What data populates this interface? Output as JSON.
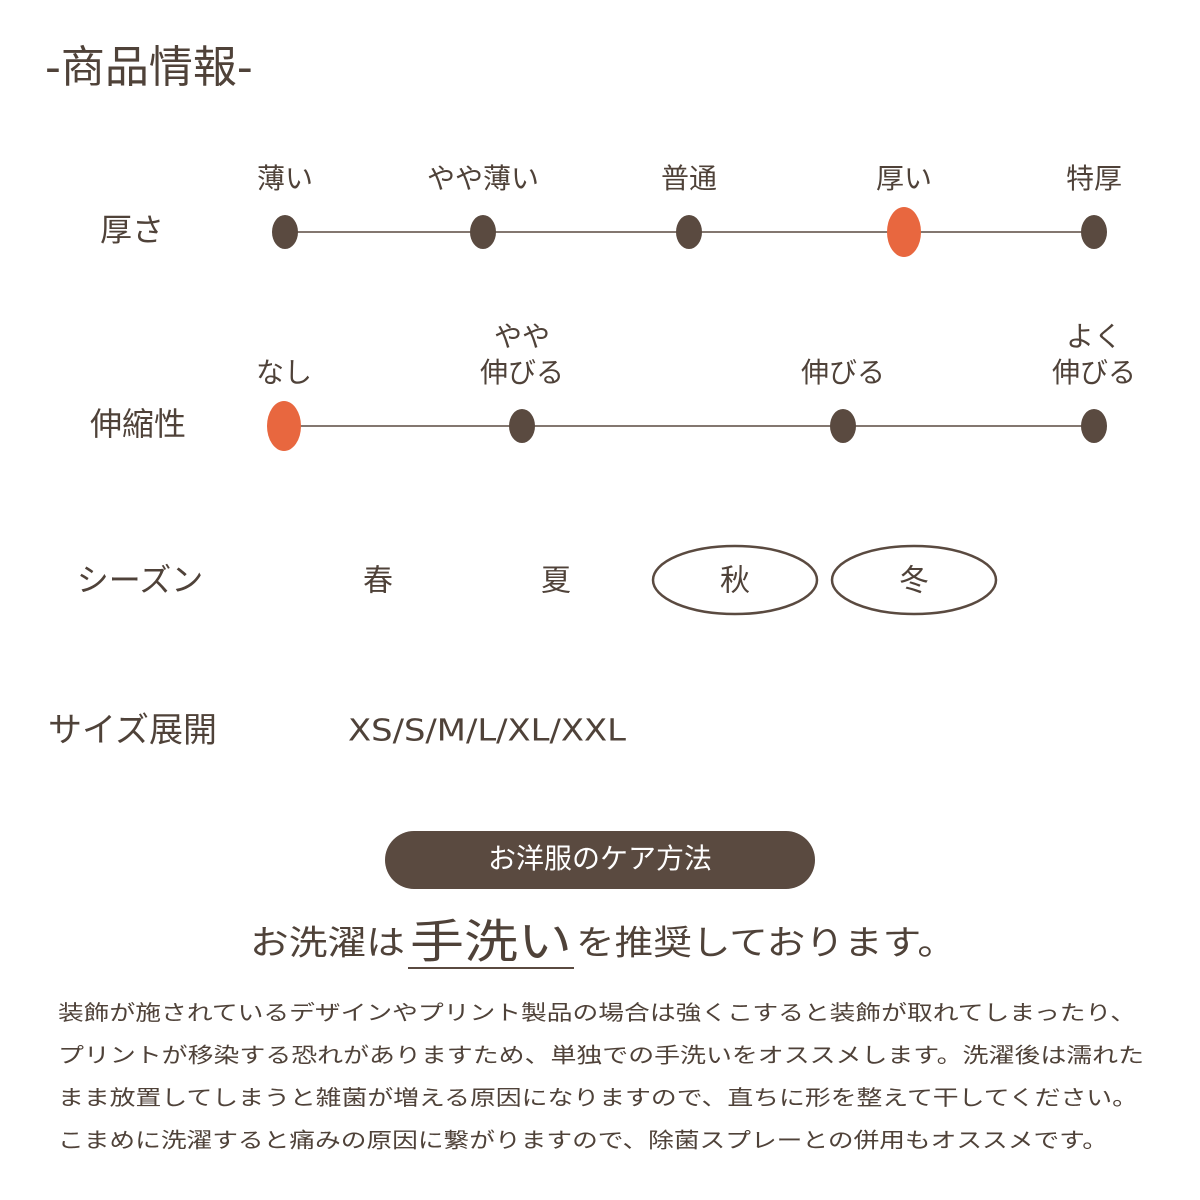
{
  "header": {
    "title": "-商品情報-"
  },
  "scales": [
    {
      "label": "厚さ",
      "options": [
        {
          "label": [
            "薄い"
          ],
          "selected": false
        },
        {
          "label": [
            "やや薄い"
          ],
          "selected": false
        },
        {
          "label": [
            "普通"
          ],
          "selected": false
        },
        {
          "label": [
            "厚い"
          ],
          "selected": true
        },
        {
          "label": [
            "特厚"
          ],
          "selected": false
        }
      ]
    },
    {
      "label": "伸縮性",
      "options": [
        {
          "label": [
            "なし"
          ],
          "selected": true
        },
        {
          "label": [
            "やや",
            "伸びる"
          ],
          "selected": false
        },
        {
          "label": [
            "伸びる"
          ],
          "selected": false
        },
        {
          "label": [
            "よく",
            "伸びる"
          ],
          "selected": false
        }
      ]
    }
  ],
  "season": {
    "label": "シーズン",
    "options": [
      {
        "label": "春",
        "selected": false
      },
      {
        "label": "夏",
        "selected": false
      },
      {
        "label": "秋",
        "selected": true
      },
      {
        "label": "冬",
        "selected": true
      }
    ]
  },
  "size": {
    "label": "サイズ展開",
    "value": "XS/S/M/L/XL/XXL"
  },
  "care": {
    "badge": "お洋服のケア方法",
    "headline": [
      "お洗濯は",
      "手洗い",
      "を推奨しております。"
    ],
    "body": [
      "装飾が施されているデザインやプリント製品の場合は強くこすると装飾が取れてしまったり、",
      "プリントが移染する恐れがありますため、単独での手洗いをオススメします。洗濯後は濡れた",
      "まま放置してしまうと雑菌が増える原因になりますので、直ちに形を整えて干してください。",
      "こまめに洗濯すると痛みの原因に繋がりますので、除菌スプレーとの併用もオススメです。"
    ]
  }
}
